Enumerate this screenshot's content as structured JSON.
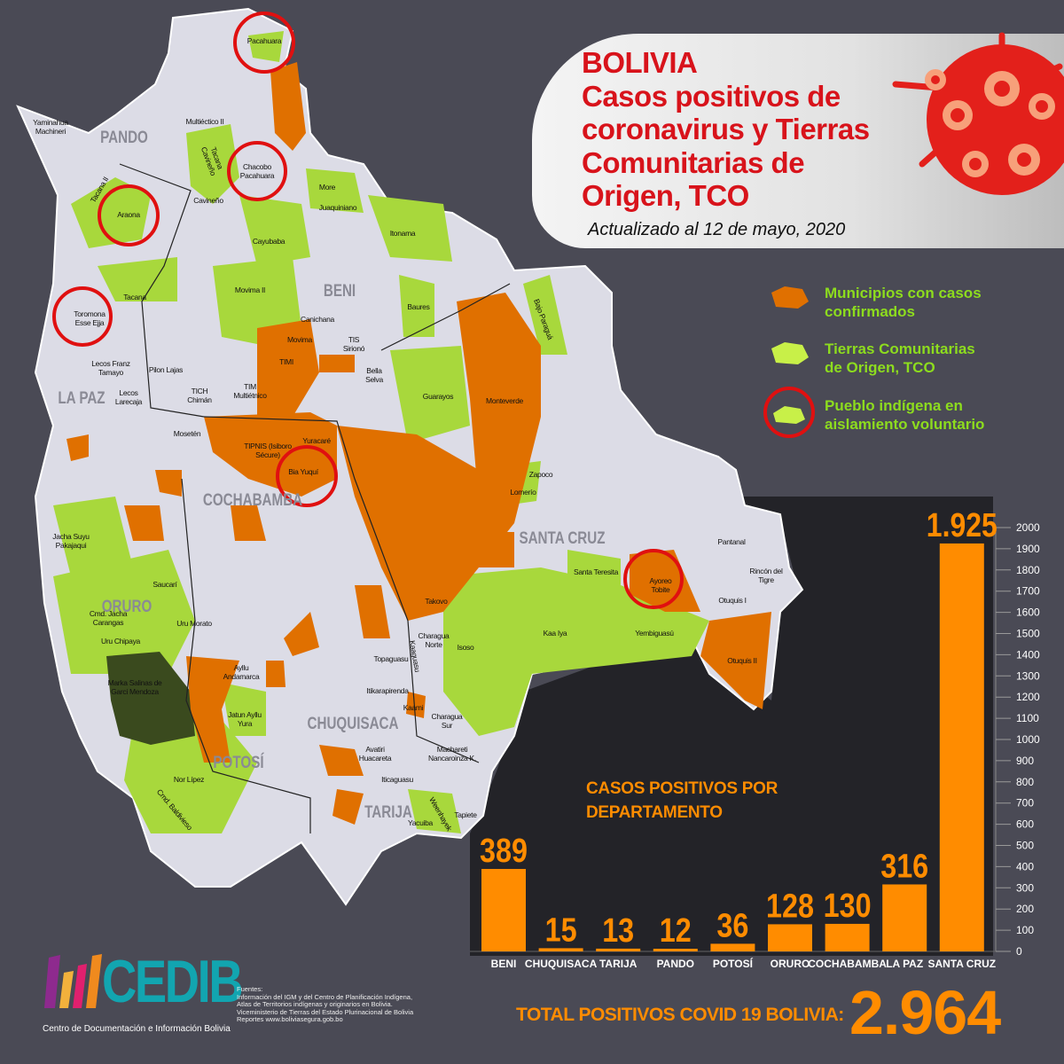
{
  "header": {
    "title_lines": [
      "BOLIVIA",
      "Casos positivos de",
      "coronavirus y Tierras",
      "Comunitarias de",
      "Origen, TCO"
    ],
    "updated": "Actualizado al 12 de mayo, 2020"
  },
  "legend": [
    {
      "label": "Municipios con casos confirmados",
      "color": "#e07000"
    },
    {
      "label": "Tierras Comunitarias de Origen, TCO",
      "color": "#a8d83c"
    },
    {
      "label": "Pueblo indígena en aislamiento voluntario",
      "color": "#e01010"
    }
  ],
  "map": {
    "departments": [
      "PANDO",
      "BENI",
      "LA PAZ",
      "COCHABAMBA",
      "SANTA CRUZ",
      "ORURO",
      "CHUQUISACA",
      "POTOSÍ",
      "TARIJA"
    ],
    "labels": [
      "Pacahuara",
      "Yaminahua Machineri",
      "Multiéctico II",
      "Tacana Cavineño",
      "Chacobo Pacahuara",
      "Cavineño",
      "Tacana II",
      "Araona",
      "More",
      "Juaquiniano",
      "Itonama",
      "Cayubaba",
      "Toromona Esse Ejja",
      "Tacana",
      "Movima II",
      "Baures",
      "Bajo Paraguá",
      "Canichana",
      "Movima",
      "TIS Sirionó",
      "TIMI",
      "Lecos Franz Tamayo",
      "Pilon Lajas",
      "Bella Selva",
      "Guarayos",
      "Lecos Larecaja",
      "TICH Chimán",
      "TIM Multiétnico",
      "Monteverde",
      "Mosetén",
      "TIPNIS (Isiboro Sécure)",
      "Yuracaré",
      "Bia Yuquí",
      "Zapoco",
      "Lomerío",
      "Jacha Suyu Pakajaqui",
      "Pantanal",
      "Santa Teresita",
      "Ayoreo Tobite",
      "Rincón del Tigre",
      "Otuquis I",
      "Saucarí",
      "Cmd. Jacha Carangas",
      "Uru Morato",
      "Takovo",
      "Charagua Norte",
      "Isoso",
      "Kaa Iya",
      "Yembiguasú",
      "Otuquis II",
      "Uru Chipaya",
      "Kaaguasu",
      "Topaguasu",
      "Marka Salinas de Garci Mendoza",
      "Ayllu Andamarca",
      "Itikarapirenda",
      "Kaami",
      "Charagua Sur",
      "Jatun Ayllu Yura",
      "Avatiri Huacareta",
      "Machareti Nancaroinza K.",
      "Nor Lípez",
      "Iticaguasu",
      "Weenhayek",
      "Tapiete",
      "Yacuiba",
      "Cmd. Baldivieso"
    ]
  },
  "chart_data": {
    "type": "bar",
    "title": "CASOS POSITIVOS POR DEPARTAMENTO",
    "categories": [
      "BENI",
      "CHUQUISACA",
      "TARIJA",
      "PANDO",
      "POTOSÍ",
      "ORURO",
      "COCHABAMBA",
      "LA PAZ",
      "SANTA CRUZ"
    ],
    "values": [
      389,
      15,
      13,
      12,
      36,
      128,
      130,
      316,
      1925
    ],
    "value_labels": [
      "389",
      "15",
      "13",
      "12",
      "36",
      "128",
      "130",
      "316",
      "1.925"
    ],
    "ylim": [
      0,
      2000
    ],
    "yticks": [
      0,
      100,
      200,
      300,
      400,
      500,
      600,
      700,
      800,
      900,
      1000,
      1100,
      1200,
      1300,
      1400,
      1500,
      1600,
      1700,
      1800,
      1900,
      2000
    ],
    "bar_color": "#ff8c00"
  },
  "total": {
    "label": "TOTAL POSITIVOS COVID 19 BOLIVIA:",
    "value": "2.964"
  },
  "logo": {
    "name": "CEDIB",
    "subtitle": "Centro de Documentación e Información Bolivia"
  },
  "sources": [
    "Fuentes:",
    "Información del IGM y del Centro de Planificación Indígena,",
    "Atlas de Territorios indígenas y originarios en Bolivia.",
    "Viceministerio de Tierras del Estado Plurinacional de Bolivia",
    "Reportes www.boliviasegura.gob.bo"
  ]
}
